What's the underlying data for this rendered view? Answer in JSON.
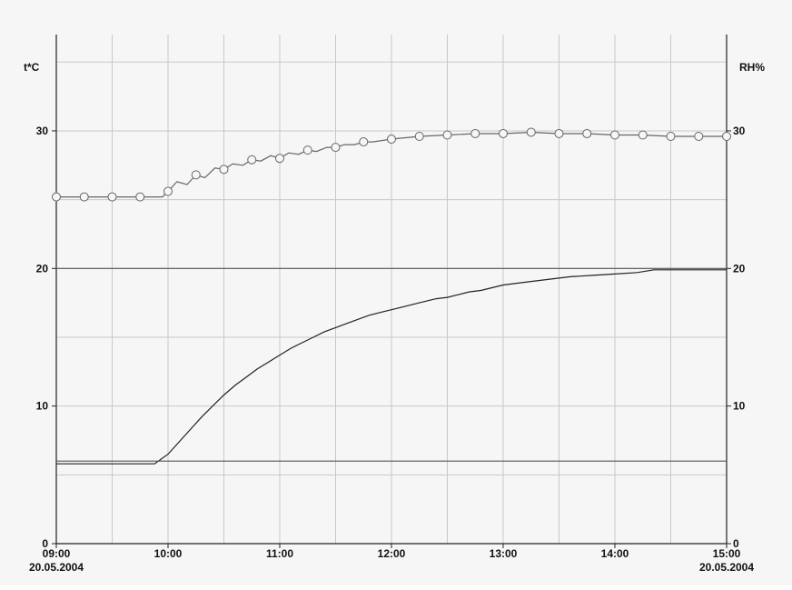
{
  "chart_data": {
    "type": "line",
    "title": "",
    "y_left_unit": "t*C",
    "y_right_unit": "RH%",
    "x_tick_labels": [
      "09:00",
      "10:00",
      "11:00",
      "12:00",
      "13:00",
      "14:00",
      "15:00"
    ],
    "x_start_date": "20.05.2004",
    "x_end_date": "20.05.2004",
    "y_left_ticks": [
      0,
      10,
      20,
      30
    ],
    "y_right_ticks": [
      0,
      10,
      20,
      30
    ],
    "ylim": [
      0,
      37
    ],
    "xlim_hours": [
      9,
      15
    ],
    "grid": true,
    "series": [
      {
        "marker": "circle",
        "color": "#666666",
        "x": [
          9.0,
          9.25,
          9.5,
          9.75,
          9.95,
          10.0,
          10.08,
          10.17,
          10.25,
          10.33,
          10.42,
          10.5,
          10.58,
          10.67,
          10.75,
          10.83,
          10.92,
          11.0,
          11.08,
          11.17,
          11.25,
          11.33,
          11.42,
          11.5,
          11.58,
          11.67,
          11.75,
          11.83,
          11.92,
          12.0,
          12.25,
          12.5,
          12.75,
          13.0,
          13.25,
          13.5,
          13.75,
          14.0,
          14.25,
          14.5,
          14.75,
          15.0
        ],
        "y": [
          25.2,
          25.2,
          25.2,
          25.2,
          25.2,
          25.6,
          26.3,
          26.1,
          26.8,
          26.6,
          27.3,
          27.2,
          27.6,
          27.5,
          27.9,
          27.8,
          28.2,
          28.0,
          28.4,
          28.3,
          28.6,
          28.5,
          28.8,
          28.8,
          29.0,
          29.0,
          29.2,
          29.2,
          29.3,
          29.4,
          29.6,
          29.7,
          29.8,
          29.8,
          29.9,
          29.8,
          29.8,
          29.7,
          29.7,
          29.6,
          29.6,
          29.6
        ]
      },
      {
        "color": "#222222",
        "x": [
          9.0,
          9.88,
          10.0,
          10.1,
          10.2,
          10.3,
          10.4,
          10.5,
          10.6,
          10.7,
          10.8,
          10.9,
          11.0,
          11.1,
          11.2,
          11.3,
          11.4,
          11.5,
          11.6,
          11.7,
          11.8,
          11.9,
          12.0,
          12.1,
          12.2,
          12.3,
          12.4,
          12.5,
          12.6,
          12.7,
          12.8,
          12.9,
          13.0,
          13.2,
          13.4,
          13.6,
          13.8,
          14.0,
          14.2,
          14.35,
          14.6,
          14.8,
          15.0
        ],
        "y": [
          5.8,
          5.8,
          6.5,
          7.4,
          8.3,
          9.2,
          10.0,
          10.8,
          11.5,
          12.1,
          12.7,
          13.2,
          13.7,
          14.2,
          14.6,
          15.0,
          15.4,
          15.7,
          16.0,
          16.3,
          16.6,
          16.8,
          17.0,
          17.2,
          17.4,
          17.6,
          17.8,
          17.9,
          18.1,
          18.3,
          18.4,
          18.6,
          18.8,
          19.0,
          19.2,
          19.4,
          19.5,
          19.6,
          19.7,
          19.9,
          19.9,
          19.9,
          19.9
        ]
      },
      {
        "color": "#555555",
        "x": [
          9.0,
          15.0
        ],
        "y": [
          6.0,
          6.0
        ]
      },
      {
        "color": "#555555",
        "x": [
          9.0,
          15.0
        ],
        "y": [
          20.0,
          20.0
        ]
      }
    ]
  }
}
